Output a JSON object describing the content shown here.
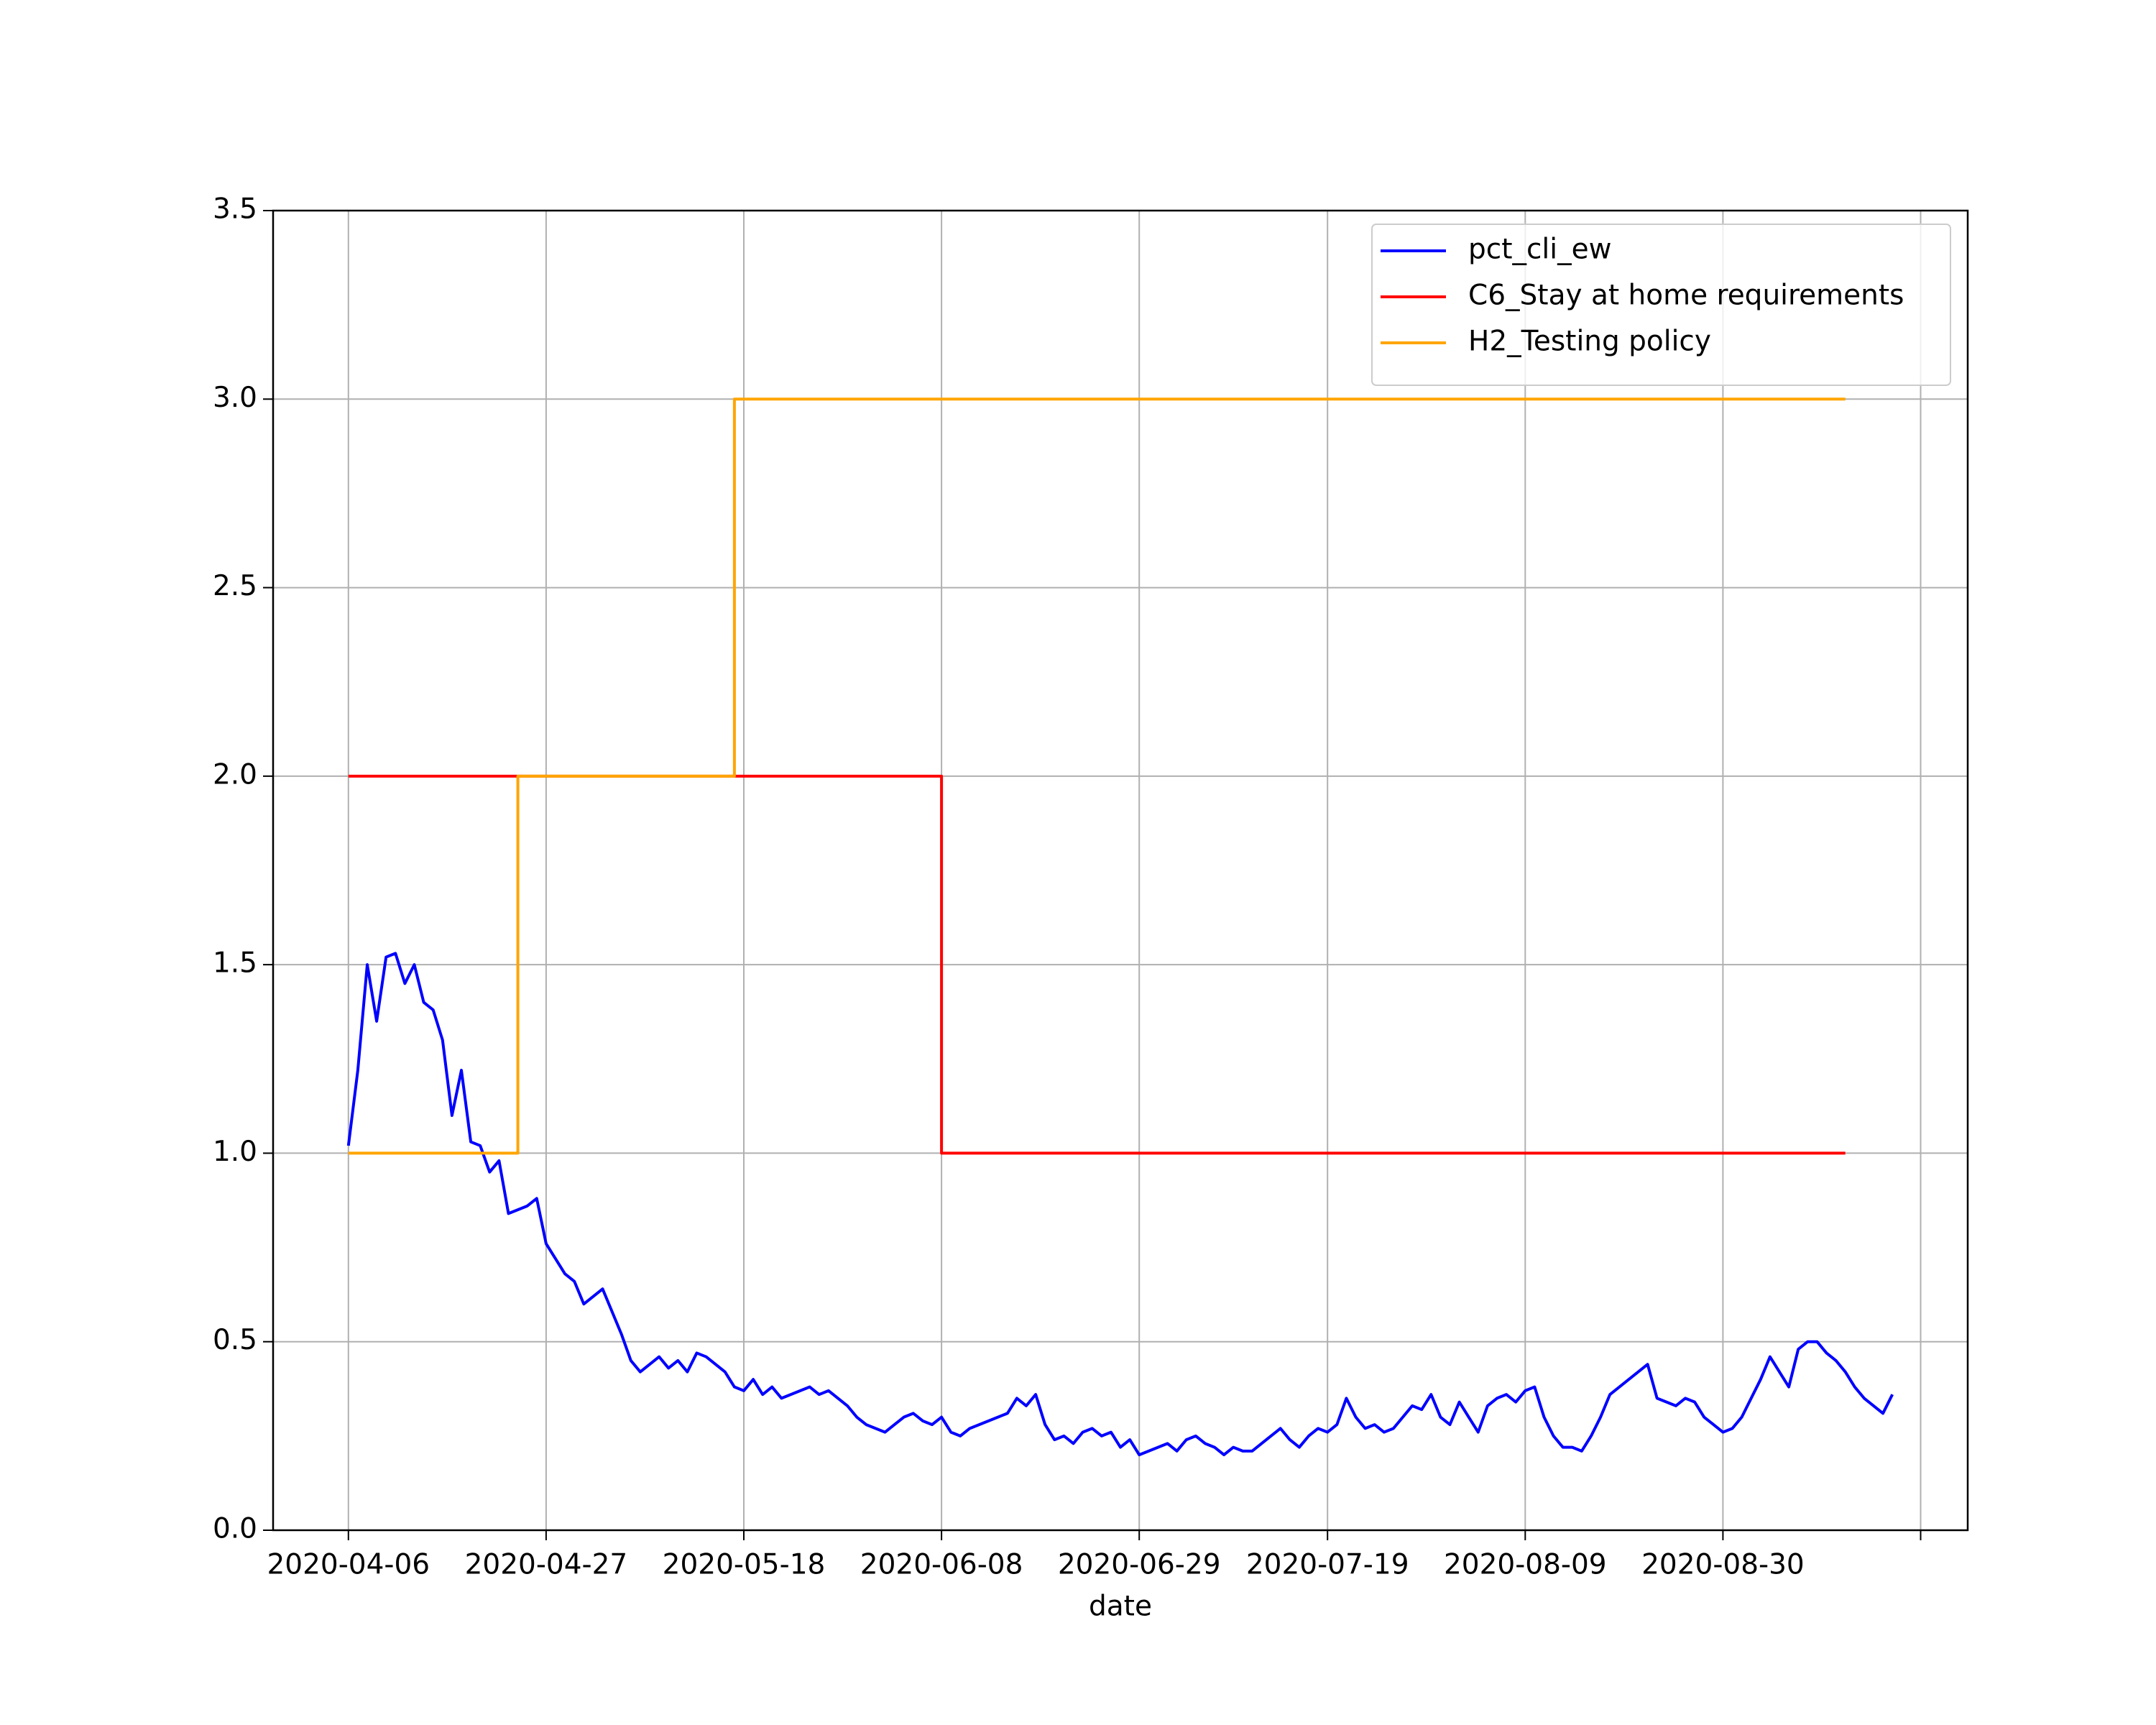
{
  "chart_data": {
    "type": "line",
    "xlabel": "date",
    "xlim": [
      "2020-03-29",
      "2020-09-25"
    ],
    "xticks": [
      "2020-04-06",
      "2020-04-27",
      "2020-05-18",
      "2020-06-08",
      "2020-06-29",
      "2020-07-19",
      "2020-08-09",
      "2020-08-30",
      {
        "value": "2020-09-20",
        "label": null
      }
    ],
    "ylim": [
      0,
      3.5
    ],
    "yticks": [
      {
        "value": 0,
        "label": "0.0"
      },
      0.5,
      {
        "value": 1,
        "label": "1.0"
      },
      1.5,
      {
        "value": 2,
        "label": "2.0"
      },
      2.5,
      {
        "value": 3,
        "label": "3.0"
      },
      3.5
    ],
    "grid": true,
    "legend": "upper right",
    "series": [
      {
        "name": "pct_cli_ew",
        "color": "#0000ff",
        "x": [
          "2020-04-06",
          "2020-04-07",
          "2020-04-08",
          "2020-04-09",
          "2020-04-10",
          "2020-04-11",
          "2020-04-12",
          "2020-04-13",
          "2020-04-14",
          "2020-04-15",
          "2020-04-16",
          "2020-04-17",
          "2020-04-18",
          "2020-04-19",
          "2020-04-20",
          "2020-04-21",
          "2020-04-22",
          "2020-04-23",
          "2020-04-24",
          "2020-04-25",
          "2020-04-26",
          "2020-04-27",
          "2020-04-28",
          "2020-04-29",
          "2020-04-30",
          "2020-05-01",
          "2020-05-02",
          "2020-05-03",
          "2020-05-04",
          "2020-05-05",
          "2020-05-06",
          "2020-05-07",
          "2020-05-08",
          "2020-05-09",
          "2020-05-10",
          "2020-05-11",
          "2020-05-12",
          "2020-05-13",
          "2020-05-14",
          "2020-05-15",
          "2020-05-16",
          "2020-05-17",
          "2020-05-18",
          "2020-05-19",
          "2020-05-20",
          "2020-05-21",
          "2020-05-22",
          "2020-05-23",
          "2020-05-24",
          "2020-05-25",
          "2020-05-26",
          "2020-05-27",
          "2020-05-28",
          "2020-05-29",
          "2020-05-30",
          "2020-05-31",
          "2020-06-01",
          "2020-06-02",
          "2020-06-03",
          "2020-06-04",
          "2020-06-05",
          "2020-06-06",
          "2020-06-07",
          "2020-06-08",
          "2020-06-09",
          "2020-06-10",
          "2020-06-11",
          "2020-06-12",
          "2020-06-13",
          "2020-06-14",
          "2020-06-15",
          "2020-06-16",
          "2020-06-17",
          "2020-06-18",
          "2020-06-19",
          "2020-06-20",
          "2020-06-21",
          "2020-06-22",
          "2020-06-23",
          "2020-06-24",
          "2020-06-25",
          "2020-06-26",
          "2020-06-27",
          "2020-06-28",
          "2020-06-29",
          "2020-06-30",
          "2020-07-01",
          "2020-07-02",
          "2020-07-03",
          "2020-07-04",
          "2020-07-05",
          "2020-07-06",
          "2020-07-07",
          "2020-07-08",
          "2020-07-09",
          "2020-07-10",
          "2020-07-11",
          "2020-07-12",
          "2020-07-13",
          "2020-07-14",
          "2020-07-15",
          "2020-07-16",
          "2020-07-17",
          "2020-07-18",
          "2020-07-19",
          "2020-07-20",
          "2020-07-21",
          "2020-07-22",
          "2020-07-23",
          "2020-07-24",
          "2020-07-25",
          "2020-07-26",
          "2020-07-27",
          "2020-07-28",
          "2020-07-29",
          "2020-07-30",
          "2020-07-31",
          "2020-08-01",
          "2020-08-02",
          "2020-08-03",
          "2020-08-04",
          "2020-08-05",
          "2020-08-06",
          "2020-08-07",
          "2020-08-08",
          "2020-08-09",
          "2020-08-10",
          "2020-08-11",
          "2020-08-12",
          "2020-08-13",
          "2020-08-14",
          "2020-08-15",
          "2020-08-16",
          "2020-08-17",
          "2020-08-18",
          "2020-08-19",
          "2020-08-20",
          "2020-08-21",
          "2020-08-22",
          "2020-08-23",
          "2020-08-24",
          "2020-08-25",
          "2020-08-26",
          "2020-08-27",
          "2020-08-28",
          "2020-08-29",
          "2020-08-30",
          "2020-08-31",
          "2020-09-01",
          "2020-09-02",
          "2020-09-03",
          "2020-09-04",
          "2020-09-05",
          "2020-09-06",
          "2020-09-07",
          "2020-09-08",
          "2020-09-09",
          "2020-09-10",
          "2020-09-11",
          "2020-09-12",
          "2020-09-13",
          "2020-09-14",
          "2020-09-15",
          "2020-09-16",
          "2020-09-17"
        ],
        "values": [
          1.02,
          1.22,
          1.5,
          1.35,
          1.52,
          1.53,
          1.45,
          1.5,
          1.4,
          1.38,
          1.3,
          1.1,
          1.22,
          1.03,
          1.02,
          0.95,
          0.98,
          0.84,
          0.85,
          0.86,
          0.88,
          0.76,
          0.72,
          0.68,
          0.66,
          0.6,
          0.62,
          0.64,
          0.58,
          0.52,
          0.45,
          0.42,
          0.44,
          0.46,
          0.43,
          0.45,
          0.42,
          0.47,
          0.46,
          0.44,
          0.42,
          0.38,
          0.37,
          0.4,
          0.36,
          0.38,
          0.35,
          0.36,
          0.37,
          0.38,
          0.36,
          0.37,
          0.35,
          0.33,
          0.3,
          0.28,
          0.27,
          0.26,
          0.28,
          0.3,
          0.31,
          0.29,
          0.28,
          0.3,
          0.26,
          0.25,
          0.27,
          0.28,
          0.29,
          0.3,
          0.31,
          0.35,
          0.33,
          0.36,
          0.28,
          0.24,
          0.25,
          0.23,
          0.26,
          0.27,
          0.25,
          0.26,
          0.22,
          0.24,
          0.2,
          0.21,
          0.22,
          0.23,
          0.21,
          0.24,
          0.25,
          0.23,
          0.22,
          0.2,
          0.22,
          0.21,
          0.21,
          0.23,
          0.25,
          0.27,
          0.24,
          0.22,
          0.25,
          0.27,
          0.26,
          0.28,
          0.35,
          0.3,
          0.27,
          0.28,
          0.26,
          0.27,
          0.3,
          0.33,
          0.32,
          0.36,
          0.3,
          0.28,
          0.34,
          0.3,
          0.26,
          0.33,
          0.35,
          0.36,
          0.34,
          0.37,
          0.38,
          0.3,
          0.25,
          0.22,
          0.22,
          0.21,
          0.25,
          0.3,
          0.36,
          0.38,
          0.4,
          0.42,
          0.44,
          0.35,
          0.34,
          0.33,
          0.35,
          0.34,
          0.3,
          0.28,
          0.26,
          0.27,
          0.3,
          0.35,
          0.4,
          0.46,
          0.42,
          0.38,
          0.48,
          0.5,
          0.5,
          0.47,
          0.45,
          0.42,
          0.38,
          0.35,
          0.33,
          0.31,
          0.36
        ]
      },
      {
        "name": "C6_Stay at home requirements",
        "color": "#ff0000",
        "x": [
          "2020-04-06",
          "2020-06-08",
          "2020-06-08",
          "2020-09-12"
        ],
        "values": [
          2,
          2,
          1,
          1
        ]
      },
      {
        "name": "H2_Testing policy",
        "color": "#ffa500",
        "x": [
          "2020-04-06",
          "2020-04-24",
          "2020-04-24",
          "2020-05-17",
          "2020-05-17",
          "2020-09-12"
        ],
        "values": [
          1,
          1,
          2,
          2,
          3,
          3
        ]
      }
    ]
  }
}
